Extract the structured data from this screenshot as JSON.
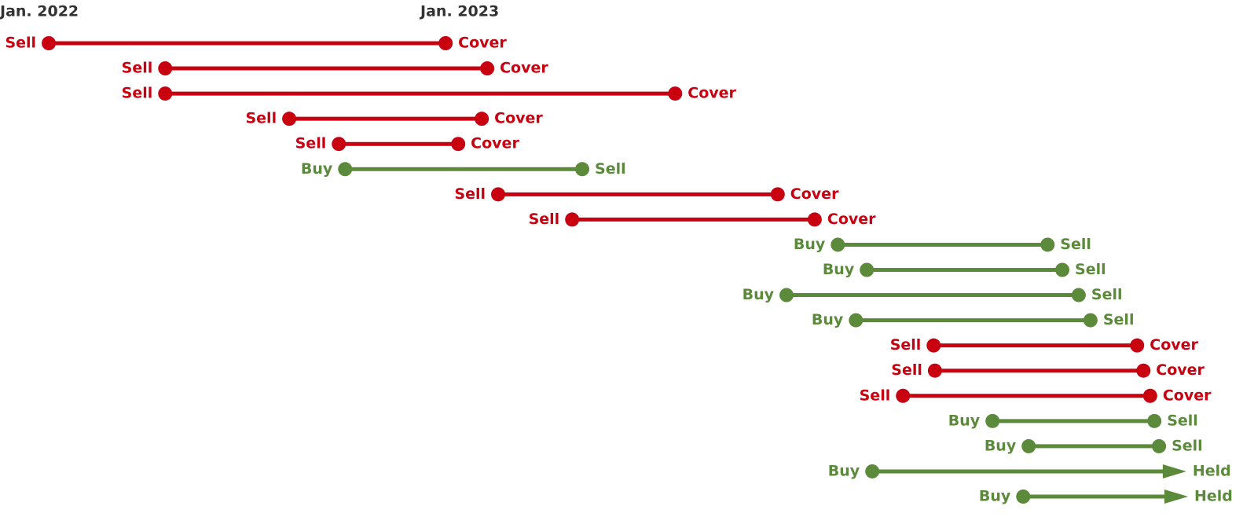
{
  "chart_data": {
    "type": "range",
    "xlim": [
      2022,
      2024.983
    ],
    "xticks": [
      {
        "value": 2022,
        "label": "Jan. 2022"
      },
      {
        "value": 2023,
        "label": "Jan. 2023"
      }
    ],
    "trades": [
      {
        "start_label": "Sell",
        "end_label": "Cover",
        "start": 2022.116,
        "end": 2023.06,
        "color": "#c8000f",
        "end_marker": "dot"
      },
      {
        "start_label": "Sell",
        "end_label": "Cover",
        "start": 2022.393,
        "end": 2023.159,
        "color": "#c8000f",
        "end_marker": "dot"
      },
      {
        "start_label": "Sell",
        "end_label": "Cover",
        "start": 2022.393,
        "end": 2023.606,
        "color": "#c8000f",
        "end_marker": "dot"
      },
      {
        "start_label": "Sell",
        "end_label": "Cover",
        "start": 2022.688,
        "end": 2023.146,
        "color": "#c8000f",
        "end_marker": "dot"
      },
      {
        "start_label": "Sell",
        "end_label": "Cover",
        "start": 2022.806,
        "end": 2023.09,
        "color": "#c8000f",
        "end_marker": "dot"
      },
      {
        "start_label": "Buy",
        "end_label": "Sell",
        "start": 2022.821,
        "end": 2023.385,
        "color": "#5a8a3a",
        "end_marker": "dot"
      },
      {
        "start_label": "Sell",
        "end_label": "Cover",
        "start": 2023.185,
        "end": 2023.85,
        "color": "#c8000f",
        "end_marker": "dot"
      },
      {
        "start_label": "Sell",
        "end_label": "Cover",
        "start": 2023.361,
        "end": 2023.938,
        "color": "#c8000f",
        "end_marker": "dot"
      },
      {
        "start_label": "Buy",
        "end_label": "Sell",
        "start": 2023.993,
        "end": 2024.492,
        "color": "#5a8a3a",
        "end_marker": "dot"
      },
      {
        "start_label": "Buy",
        "end_label": "Sell",
        "start": 2024.062,
        "end": 2024.527,
        "color": "#5a8a3a",
        "end_marker": "dot"
      },
      {
        "start_label": "Buy",
        "end_label": "Sell",
        "start": 2023.871,
        "end": 2024.566,
        "color": "#5a8a3a",
        "end_marker": "dot"
      },
      {
        "start_label": "Buy",
        "end_label": "Sell",
        "start": 2024.036,
        "end": 2024.594,
        "color": "#5a8a3a",
        "end_marker": "dot"
      },
      {
        "start_label": "Sell",
        "end_label": "Cover",
        "start": 2024.221,
        "end": 2024.705,
        "color": "#c8000f",
        "end_marker": "dot"
      },
      {
        "start_label": "Sell",
        "end_label": "Cover",
        "start": 2024.224,
        "end": 2024.72,
        "color": "#c8000f",
        "end_marker": "dot"
      },
      {
        "start_label": "Sell",
        "end_label": "Cover",
        "start": 2024.148,
        "end": 2024.736,
        "color": "#c8000f",
        "end_marker": "dot"
      },
      {
        "start_label": "Buy",
        "end_label": "Sell",
        "start": 2024.361,
        "end": 2024.746,
        "color": "#5a8a3a",
        "end_marker": "dot"
      },
      {
        "start_label": "Buy",
        "end_label": "Sell",
        "start": 2024.447,
        "end": 2024.757,
        "color": "#5a8a3a",
        "end_marker": "dot"
      },
      {
        "start_label": "Buy",
        "end_label": "Held",
        "start": 2024.075,
        "end": 2024.822,
        "color": "#5a8a3a",
        "end_marker": "arrow"
      },
      {
        "start_label": "Buy",
        "end_label": "Held",
        "start": 2024.434,
        "end": 2024.826,
        "color": "#5a8a3a",
        "end_marker": "arrow"
      }
    ]
  }
}
